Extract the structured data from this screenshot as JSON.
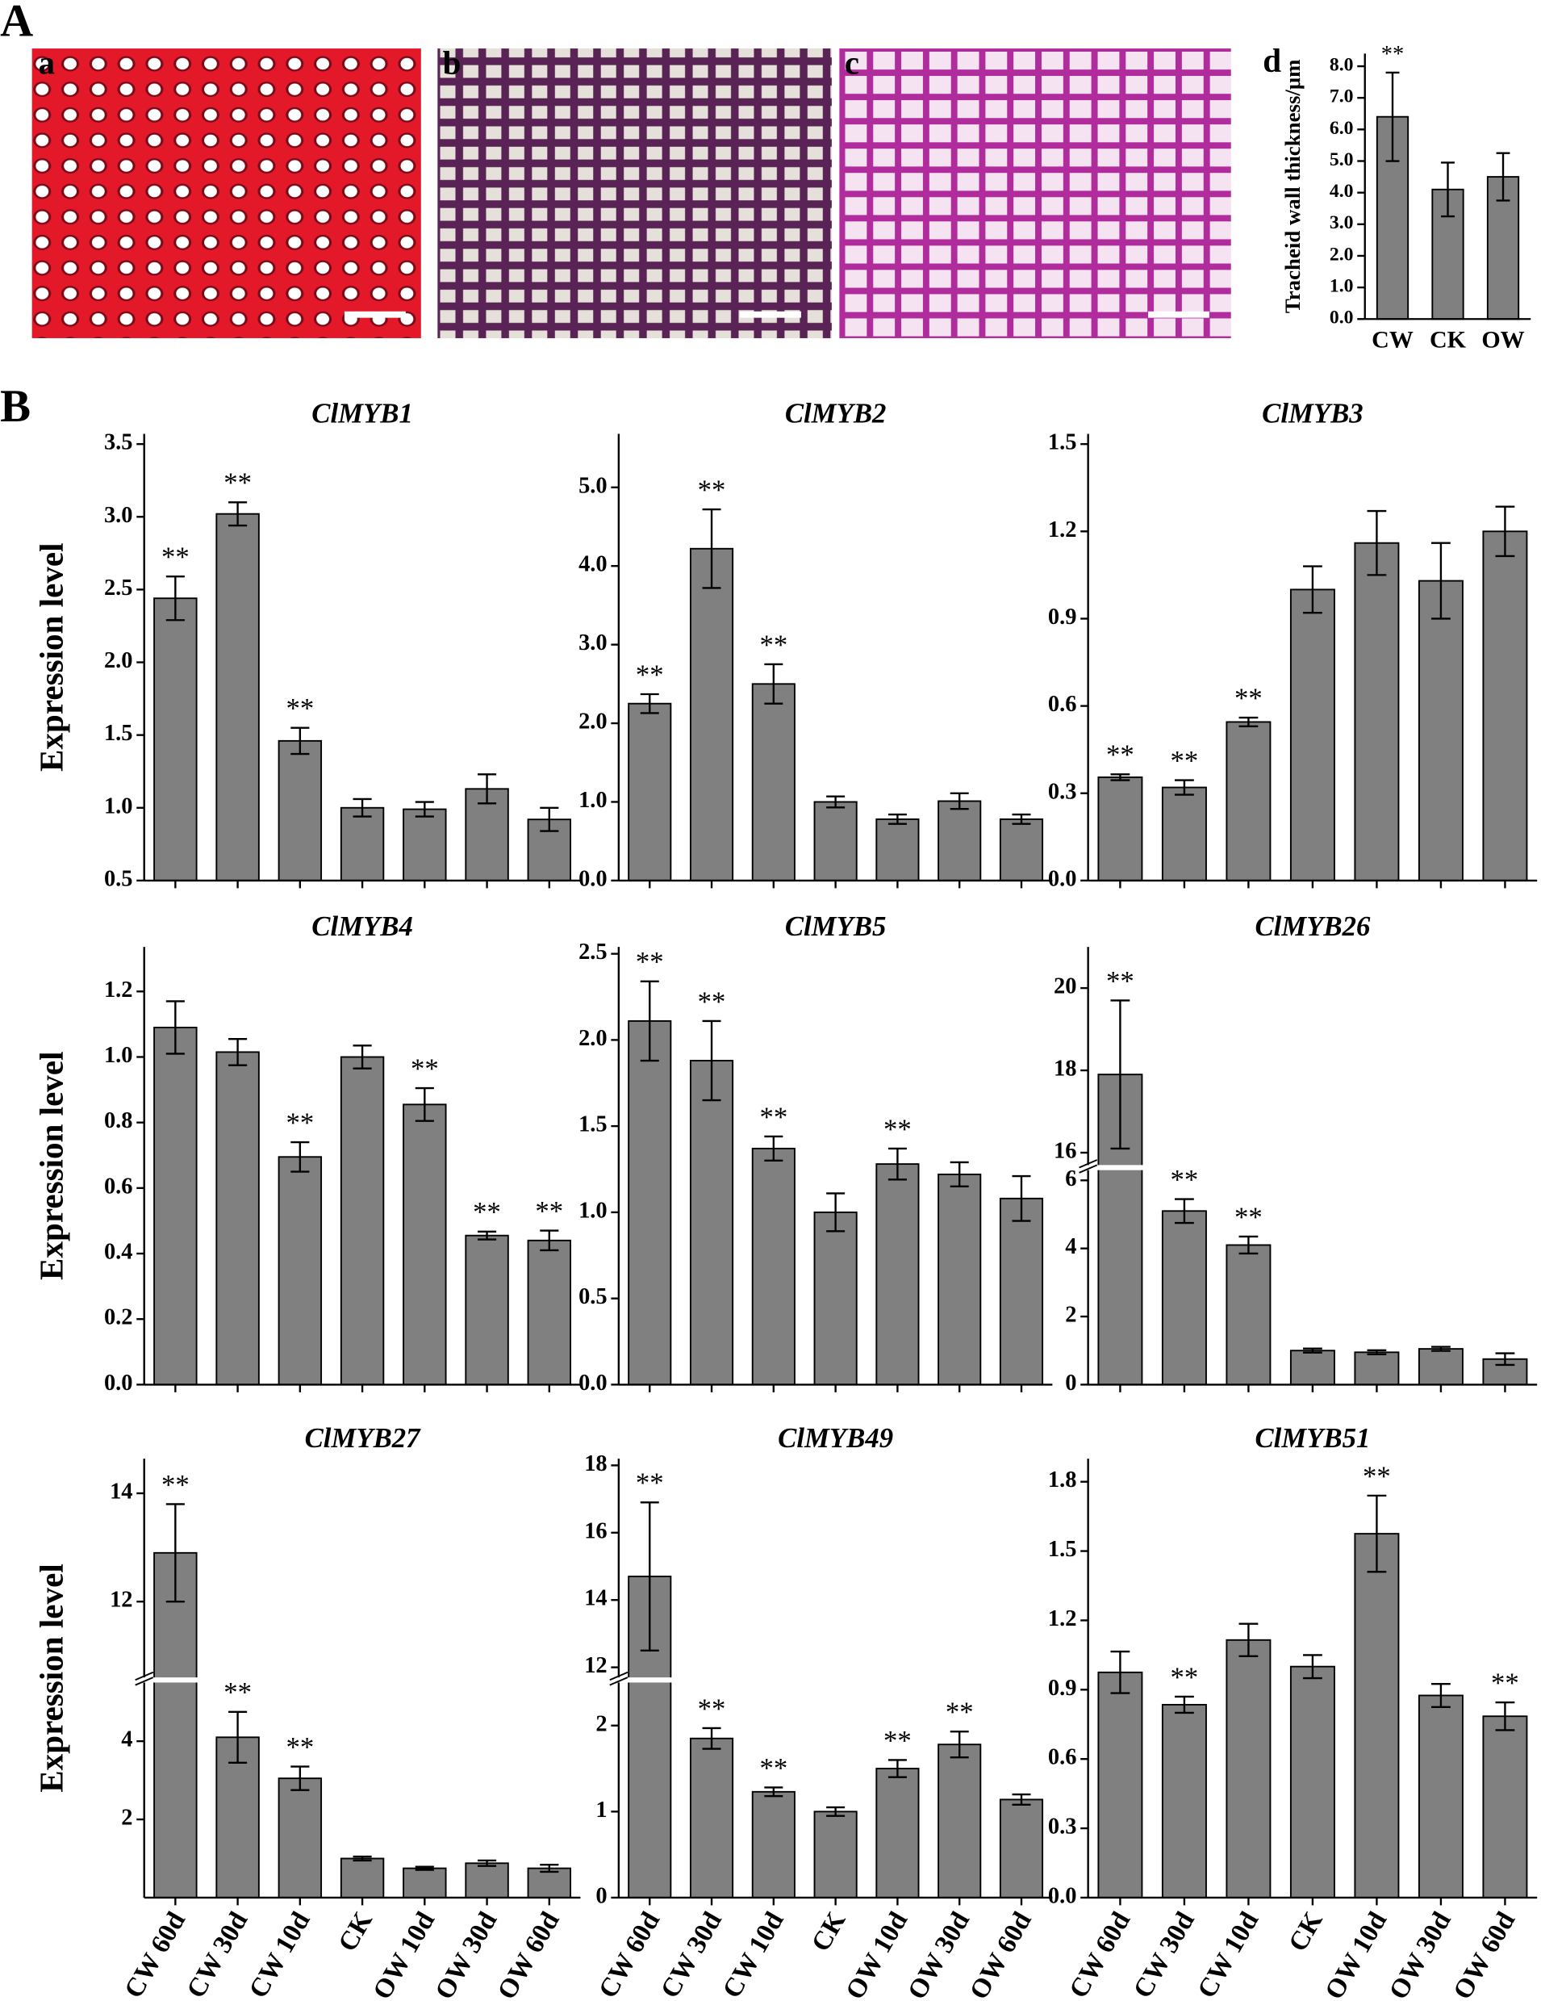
{
  "panel_labels": [
    "A",
    "B"
  ],
  "images": [
    {
      "label": "a"
    },
    {
      "label": "b"
    },
    {
      "label": "c"
    }
  ],
  "chart_data": [
    {
      "type": "bar",
      "label": "d",
      "ylabel": "Tracheid wall thickness/μm",
      "categories": [
        "CW",
        "CK",
        "OW"
      ],
      "values": [
        6.4,
        4.1,
        4.5
      ],
      "errors": [
        1.4,
        0.85,
        0.75
      ],
      "sig": [
        "**",
        null,
        null
      ],
      "color": "#808080",
      "ylim": [
        0,
        8.4
      ],
      "yticks": [
        {
          "value": 0,
          "label": "0.0"
        },
        {
          "value": 1,
          "label": "1.0"
        },
        {
          "value": 2,
          "label": "2.0"
        },
        {
          "value": 3,
          "label": "3.0"
        },
        {
          "value": 4,
          "label": "4.0"
        },
        {
          "value": 5,
          "label": "5.0"
        },
        {
          "value": 6,
          "label": "6.0"
        },
        {
          "value": 7,
          "label": "7.0"
        },
        {
          "value": 8,
          "label": "8.0"
        }
      ]
    },
    {
      "type": "bar",
      "title": "ClMYB1",
      "ylabel": "Expression level",
      "categories": [
        null,
        null,
        null,
        null,
        null,
        null,
        null
      ],
      "values": [
        2.44,
        3.02,
        1.46,
        1.0,
        0.99,
        1.13,
        0.92
      ],
      "errors": [
        0.15,
        0.08,
        0.09,
        0.06,
        0.05,
        0.1,
        0.08
      ],
      "sig": [
        "**",
        "**",
        "**",
        null,
        null,
        null,
        null
      ],
      "color": "#808080",
      "ylim": [
        0.5,
        3.57
      ],
      "yticks": [
        0.5,
        {
          "value": 1,
          "label": "1.0"
        },
        1.5,
        {
          "value": 2,
          "label": "2.0"
        },
        2.5,
        {
          "value": 3,
          "label": "3.0"
        },
        3.5
      ]
    },
    {
      "type": "bar",
      "title": "ClMYB2",
      "categories": [
        null,
        null,
        null,
        null,
        null,
        null,
        null
      ],
      "values": [
        2.25,
        4.22,
        2.5,
        1.0,
        0.78,
        1.01,
        0.78
      ],
      "errors": [
        0.12,
        0.5,
        0.25,
        0.07,
        0.06,
        0.1,
        0.06
      ],
      "sig": [
        "**",
        "**",
        "**",
        null,
        null,
        null,
        null
      ],
      "color": "#808080",
      "ylim": [
        0,
        5.68
      ],
      "yticks": [
        {
          "value": 0,
          "label": "0.0"
        },
        {
          "value": 1,
          "label": "1.0"
        },
        {
          "value": 2,
          "label": "2.0"
        },
        {
          "value": 3,
          "label": "3.0"
        },
        {
          "value": 4,
          "label": "4.0"
        },
        {
          "value": 5,
          "label": "5.0"
        }
      ]
    },
    {
      "type": "bar",
      "title": "ClMYB3",
      "categories": [
        null,
        null,
        null,
        null,
        null,
        null,
        null
      ],
      "values": [
        0.355,
        0.32,
        0.545,
        1.0,
        1.16,
        1.03,
        1.2
      ],
      "errors": [
        0.01,
        0.025,
        0.015,
        0.08,
        0.11,
        0.13,
        0.085
      ],
      "sig": [
        "**",
        "**",
        "**",
        null,
        null,
        null,
        null
      ],
      "color": "#808080",
      "ylim": [
        0,
        1.535
      ],
      "yticks": [
        {
          "value": 0,
          "label": "0.0"
        },
        0.3,
        0.6,
        0.9,
        1.2,
        1.5
      ]
    },
    {
      "type": "bar",
      "title": "ClMYB4",
      "ylabel": "Expression level",
      "categories": [
        null,
        null,
        null,
        null,
        null,
        null,
        null
      ],
      "values": [
        1.09,
        1.015,
        0.695,
        1.0,
        0.855,
        0.455,
        0.44
      ],
      "errors": [
        0.08,
        0.04,
        0.045,
        0.035,
        0.05,
        0.012,
        0.03
      ],
      "sig": [
        null,
        null,
        "**",
        null,
        "**",
        "**",
        "**"
      ],
      "color": "#808080",
      "ylim": [
        0,
        1.336
      ],
      "yticks": [
        {
          "value": 0,
          "label": "0.0"
        },
        0.2,
        0.4,
        0.6,
        0.8,
        {
          "value": 1,
          "label": "1.0"
        },
        1.2
      ]
    },
    {
      "type": "bar",
      "title": "ClMYB5",
      "categories": [
        null,
        null,
        null,
        null,
        null,
        null,
        null
      ],
      "values": [
        2.11,
        1.88,
        1.37,
        1.0,
        1.28,
        1.22,
        1.08
      ],
      "errors": [
        0.23,
        0.23,
        0.07,
        0.11,
        0.09,
        0.07,
        0.13
      ],
      "sig": [
        "**",
        "**",
        "**",
        null,
        "**",
        null,
        null
      ],
      "color": "#808080",
      "ylim": [
        0,
        2.54
      ],
      "yticks": [
        {
          "value": 0,
          "label": "0.0"
        },
        0.5,
        {
          "value": 1,
          "label": "1.0"
        },
        1.5,
        {
          "value": 2,
          "label": "2.0"
        },
        2.5
      ]
    },
    {
      "type": "bar",
      "title": "ClMYB26",
      "categories": [
        null,
        null,
        null,
        null,
        null,
        null,
        null
      ],
      "values": [
        17.9,
        5.1,
        4.1,
        1.0,
        0.95,
        1.05,
        0.75
      ],
      "errors": [
        1.8,
        0.35,
        0.25,
        0.06,
        0.06,
        0.06,
        0.17
      ],
      "sig": [
        "**",
        "**",
        "**",
        null,
        null,
        null,
        null
      ],
      "color": "#808080",
      "ylim": [
        0,
        21
      ],
      "ybreak": [
        6.3,
        15.7
      ],
      "yticks": [
        0,
        2,
        4,
        6,
        16,
        18,
        20
      ]
    },
    {
      "type": "bar",
      "title": "ClMYB27",
      "ylabel": "Expression level",
      "categories": [
        "CW 60d",
        "CW 30d",
        "CW 10d",
        "CK",
        "OW 10d",
        "OW 30d",
        "OW 60d"
      ],
      "values": [
        12.9,
        4.1,
        3.05,
        1.0,
        0.75,
        0.88,
        0.75
      ],
      "errors": [
        0.9,
        0.65,
        0.3,
        0.05,
        0.04,
        0.07,
        0.09
      ],
      "sig": [
        "**",
        "**",
        "**",
        null,
        null,
        null,
        null
      ],
      "color": "#808080",
      "ylim": [
        0,
        14.64
      ],
      "ybreak": [
        5.5,
        10.6
      ],
      "yticks": [
        2,
        4,
        12,
        14
      ]
    },
    {
      "type": "bar",
      "title": "ClMYB49",
      "categories": [
        "CW 60d",
        "CW 30d",
        "CW 10d",
        "CK",
        "OW 10d",
        "OW 30d",
        "OW 60d"
      ],
      "values": [
        14.7,
        1.85,
        1.23,
        1.0,
        1.5,
        1.78,
        1.14
      ],
      "errors": [
        2.2,
        0.12,
        0.05,
        0.05,
        0.1,
        0.15,
        0.06
      ],
      "sig": [
        "**",
        "**",
        "**",
        null,
        "**",
        "**",
        null
      ],
      "color": "#808080",
      "ylim": [
        0,
        18.2
      ],
      "ybreak": [
        2.5,
        11.7
      ],
      "yticks": [
        0,
        1,
        2,
        12,
        14,
        16,
        18
      ]
    },
    {
      "type": "bar",
      "title": "ClMYB51",
      "categories": [
        "CW 60d",
        "CW 30d",
        "CW 10d",
        "CK",
        "OW 10d",
        "OW 30d",
        "OW 60d"
      ],
      "values": [
        0.975,
        0.835,
        1.115,
        1.0,
        1.575,
        0.875,
        0.785
      ],
      "errors": [
        0.09,
        0.035,
        0.07,
        0.05,
        0.165,
        0.05,
        0.06
      ],
      "sig": [
        null,
        "**",
        null,
        null,
        "**",
        null,
        "**"
      ],
      "color": "#808080",
      "ylim": [
        0,
        1.9
      ],
      "yticks": [
        {
          "value": 0,
          "label": "0.0"
        },
        0.3,
        0.6,
        0.9,
        1.2,
        1.5,
        1.8
      ]
    }
  ]
}
